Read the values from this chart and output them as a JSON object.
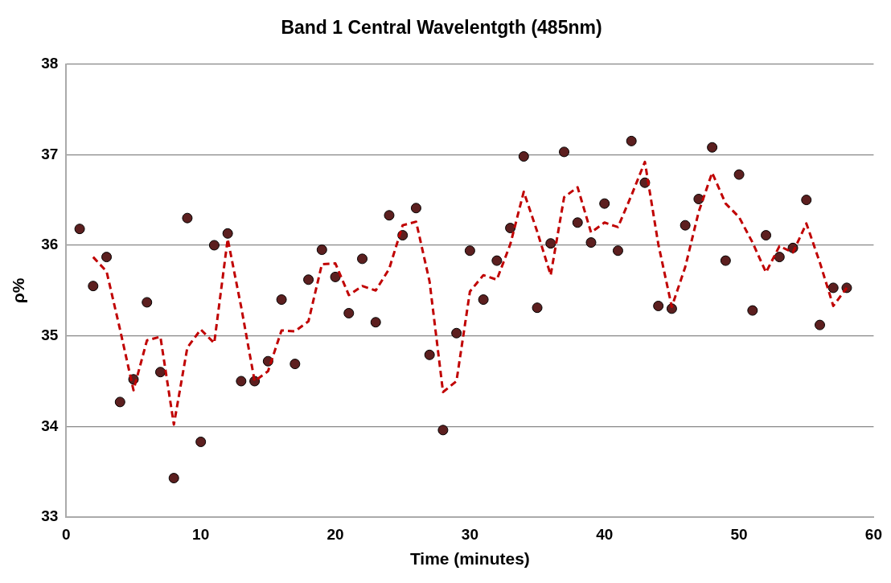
{
  "chart_data": {
    "type": "scatter",
    "title": "Band 1 Central Wavelentgth (485nm)",
    "xlabel": "Time (minutes)",
    "ylabel": "ρ%",
    "xlim": [
      0,
      60
    ],
    "xticks": [
      0,
      10,
      20,
      30,
      40,
      50,
      60
    ],
    "ylim": [
      33,
      38
    ],
    "yticks": [
      33,
      34,
      35,
      36,
      37,
      38
    ],
    "grid": "y",
    "legend": false,
    "series": [
      {
        "color": "#5c1f1f",
        "marker": "circle",
        "x": [
          1,
          2,
          3,
          4,
          5,
          6,
          7,
          8,
          9,
          10,
          11,
          12,
          13,
          14,
          15,
          16,
          17,
          18,
          19,
          20,
          21,
          22,
          23,
          24,
          25,
          26,
          27,
          28,
          29,
          30,
          31,
          32,
          33,
          34,
          35,
          36,
          37,
          38,
          39,
          40,
          41,
          42,
          43,
          44,
          45,
          46,
          47,
          48,
          49,
          50,
          51,
          52,
          53,
          54,
          55,
          56,
          57,
          58
        ],
        "values": [
          36.18,
          35.55,
          35.87,
          34.27,
          34.52,
          35.37,
          34.6,
          33.43,
          36.3,
          33.83,
          36.0,
          36.13,
          34.5,
          34.5,
          34.72,
          35.4,
          34.69,
          35.62,
          35.95,
          35.65,
          35.25,
          35.85,
          35.15,
          36.33,
          36.11,
          36.41,
          34.79,
          33.96,
          35.03,
          35.94,
          35.4,
          35.83,
          36.19,
          36.98,
          35.31,
          36.02,
          37.03,
          36.25,
          36.03,
          36.46,
          35.94,
          37.15,
          36.69,
          35.33,
          35.3,
          36.22,
          36.51,
          37.08,
          35.83,
          36.78,
          35.28,
          36.11,
          35.87,
          35.97,
          36.5,
          35.12,
          35.53,
          35.53
        ]
      },
      {
        "type": "line",
        "color": "#c00000",
        "line_style": "dashed",
        "marker": "none",
        "x": [
          2,
          3,
          4,
          5,
          6,
          7,
          8,
          9,
          10,
          11,
          12,
          13,
          14,
          15,
          16,
          17,
          18,
          19,
          20,
          21,
          22,
          23,
          24,
          25,
          26,
          27,
          28,
          29,
          30,
          31,
          32,
          33,
          34,
          35,
          36,
          37,
          38,
          39,
          40,
          41,
          42,
          43,
          44,
          45,
          46,
          47,
          48,
          49,
          50,
          51,
          52,
          53,
          54,
          55,
          56,
          57,
          58
        ],
        "values": [
          35.87,
          35.71,
          35.07,
          34.4,
          34.95,
          34.99,
          34.02,
          34.87,
          35.07,
          34.92,
          36.07,
          35.32,
          34.5,
          34.61,
          35.06,
          35.05,
          35.16,
          35.79,
          35.8,
          35.45,
          35.55,
          35.5,
          35.74,
          36.22,
          36.26,
          35.6,
          34.38,
          34.5,
          35.49,
          35.67,
          35.62,
          36.01,
          36.59,
          36.15,
          35.67,
          36.53,
          36.64,
          36.14,
          36.25,
          36.2,
          36.55,
          36.92,
          36.01,
          35.32,
          35.76,
          36.37,
          36.8,
          36.46,
          36.31,
          36.03,
          35.7,
          35.99,
          35.92,
          36.24,
          35.81,
          35.33,
          35.53
        ]
      }
    ]
  }
}
